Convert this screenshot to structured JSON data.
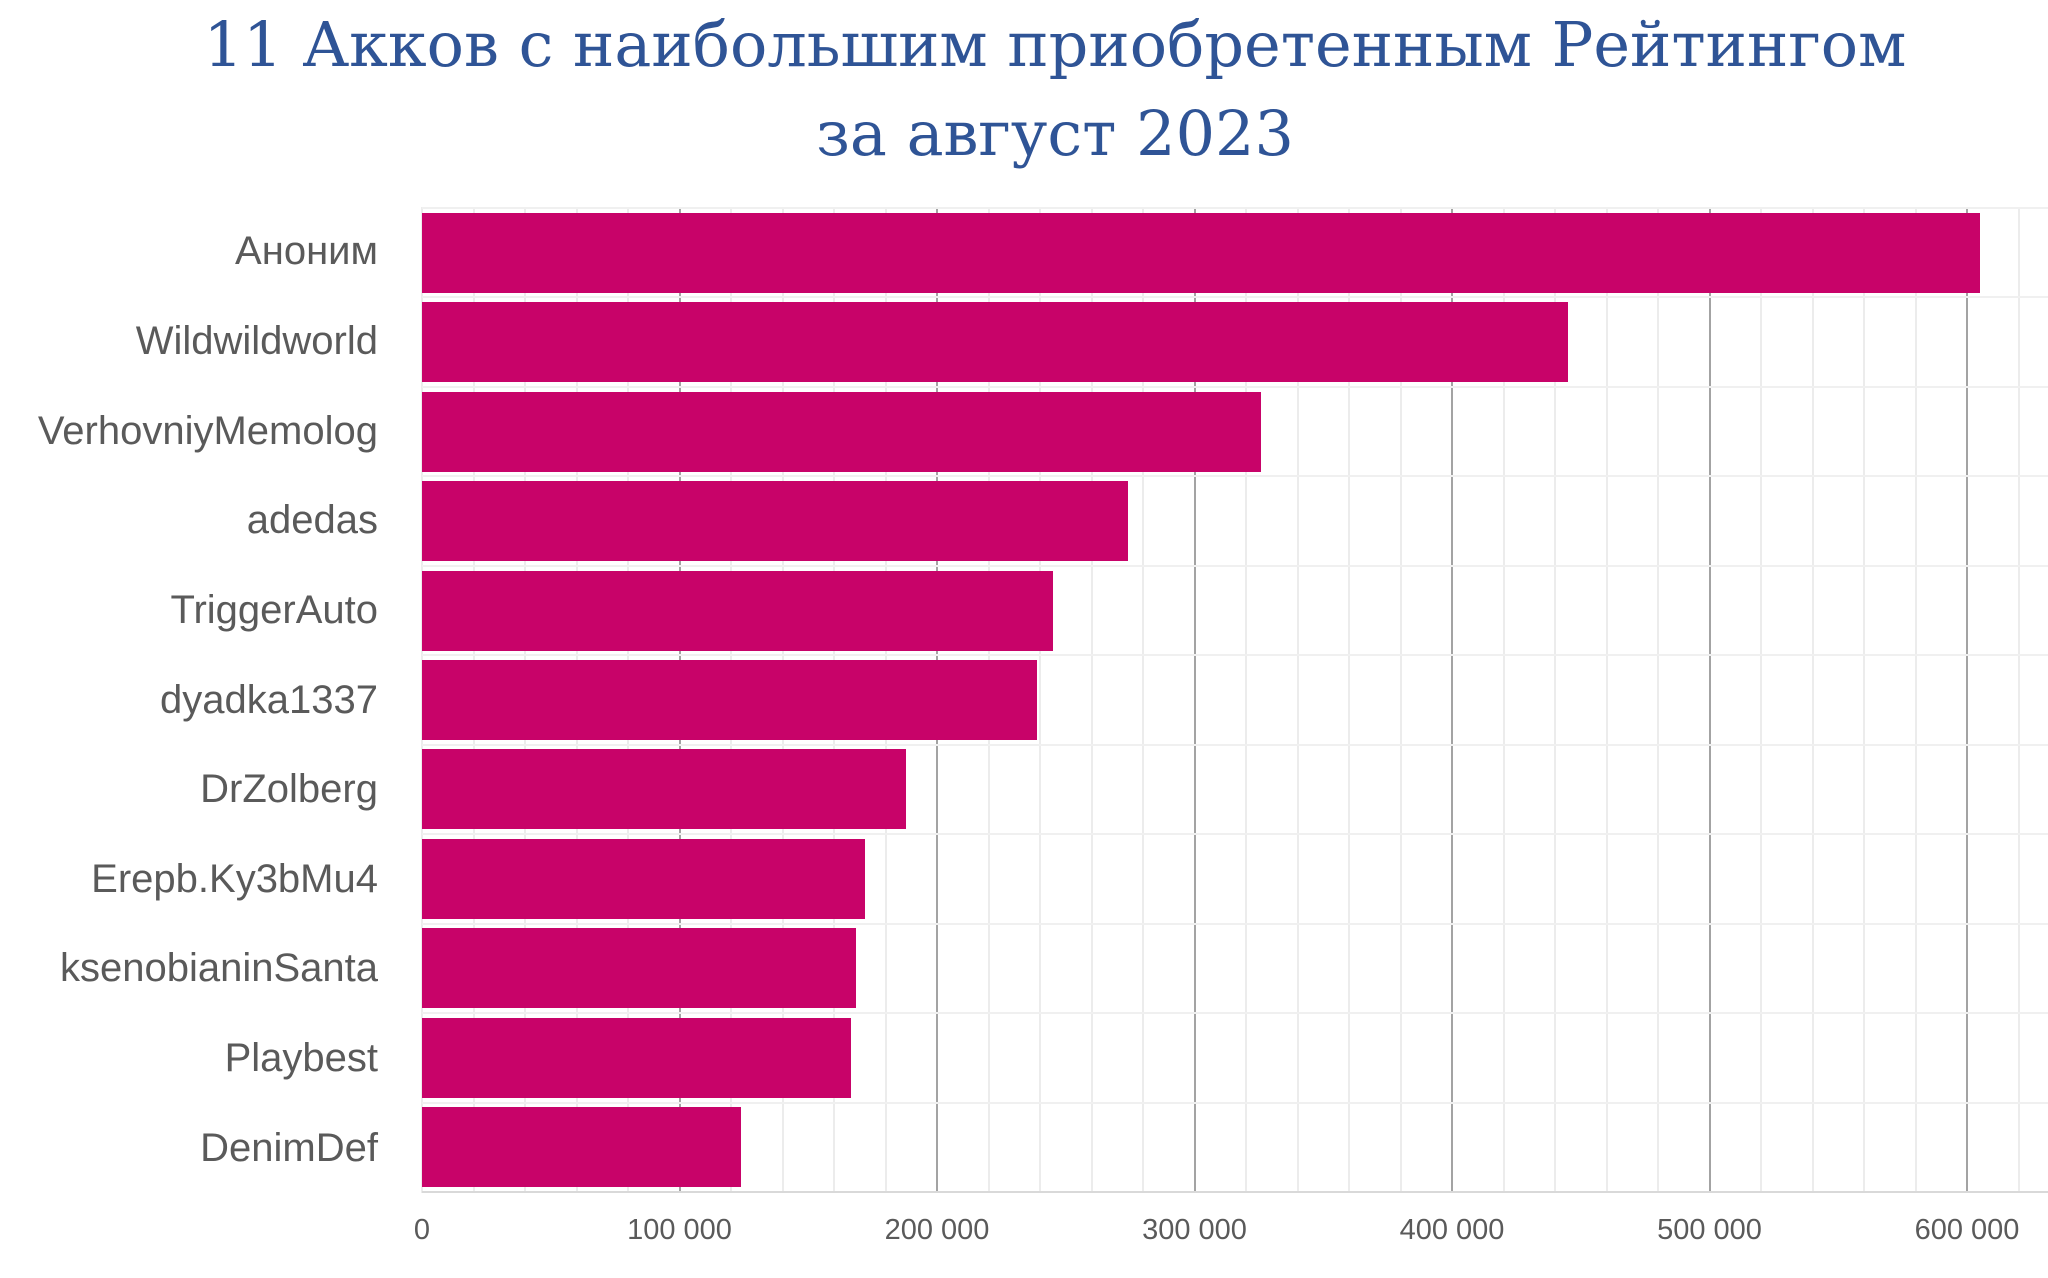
{
  "title": {
    "line1": "11 Акков с наибольшим приобретенным Рейтингом",
    "line2": "за август 2023"
  },
  "colors": {
    "background": "#FFFFFF",
    "title": "#2F5496",
    "bar": "#C80369",
    "text": "#5A5A5A",
    "grid_minor": "#ECECEC",
    "grid_major": "#A3A3A3",
    "grid_row": "#F0F0F0",
    "axis_line": "#D9D9D9"
  },
  "chart_data": {
    "type": "bar",
    "orientation": "horizontal",
    "title": "11 Акков с наибольшим приобретенным Рейтингом за август 2023",
    "xlabel": "",
    "ylabel": "",
    "categories": [
      "Аноним",
      "Wildwildworld",
      "VerhovniyMemolog",
      "adedas",
      "TriggerAuto",
      "dyadka1337",
      "DrZolberg",
      "Erepb.Ky3bMu4",
      "ksenobianinSanta",
      "Playbest",
      "DenimDef"
    ],
    "values": [
      605000,
      445000,
      326000,
      274000,
      245000,
      239000,
      188000,
      172000,
      168500,
      166500,
      124000
    ],
    "xlim": [
      0,
      620000
    ],
    "minor_grid_step": 20000,
    "major_grid_step": 100000,
    "grid": "on",
    "legend": "none",
    "x_ticks": [
      {
        "value": 0,
        "label": "0"
      },
      {
        "value": 100000,
        "label": "100 000"
      },
      {
        "value": 200000,
        "label": "200 000"
      },
      {
        "value": 300000,
        "label": "300 000"
      },
      {
        "value": 400000,
        "label": "400 000"
      },
      {
        "value": 500000,
        "label": "500 000"
      },
      {
        "value": 600000,
        "label": "600 000"
      }
    ]
  }
}
